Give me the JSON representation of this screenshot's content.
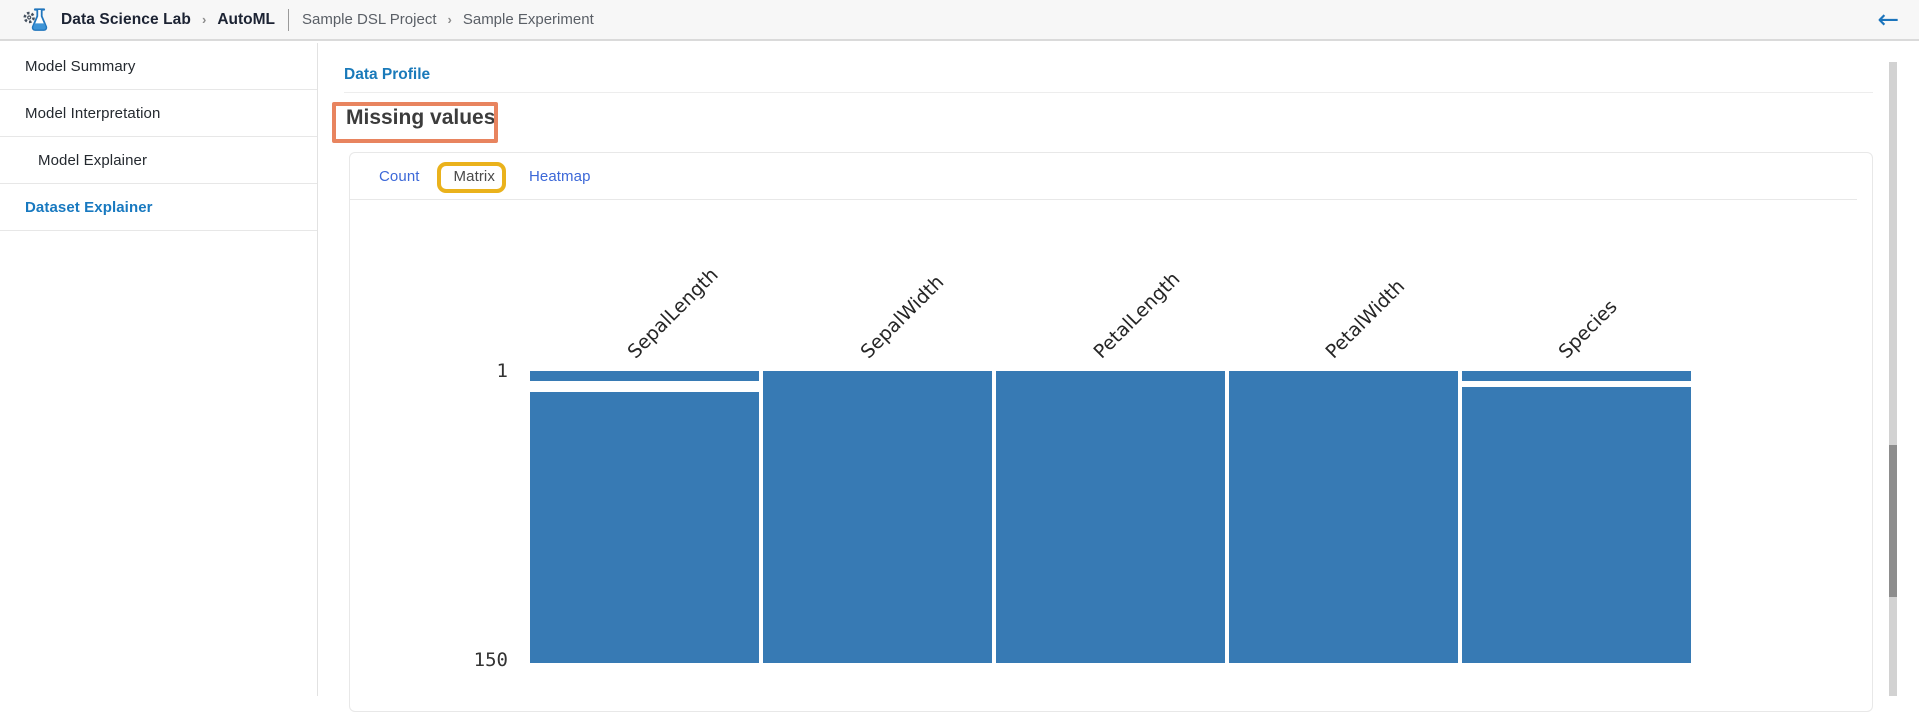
{
  "topbar": {
    "brand": "Data Science Lab",
    "module": "AutoML",
    "project": "Sample DSL Project",
    "experiment": "Sample Experiment",
    "separator": "›",
    "back_icon": "←"
  },
  "sidebar": {
    "items": [
      {
        "label": "Model Summary",
        "indent": false,
        "active": false
      },
      {
        "label": "Model Interpretation",
        "indent": false,
        "active": false
      },
      {
        "label": "Model Explainer",
        "indent": true,
        "active": false
      },
      {
        "label": "Dataset Explainer",
        "indent": false,
        "active": true
      }
    ]
  },
  "main": {
    "breadcrumb_link": "Data Profile",
    "section_title": "Missing values",
    "tabs": [
      {
        "label": "Count",
        "active": false,
        "annotated": false
      },
      {
        "label": "Matrix",
        "active": true,
        "annotated": true
      },
      {
        "label": "Heatmap",
        "active": false,
        "annotated": false
      }
    ]
  },
  "annotations": {
    "title_box_color": "#e8845f",
    "tab_box_color": "#eab21c"
  },
  "colors": {
    "link_blue": "#1a7aba",
    "tab_link_blue": "#3c68d8",
    "back_arrow_blue": "#1b74bc"
  },
  "chart_data": {
    "type": "heatmap",
    "subtype": "missingno-nullity-matrix",
    "title": "",
    "columns": [
      "SepalLength",
      "SepalWidth",
      "PetalLength",
      "PetalWidth",
      "Species"
    ],
    "rows_total": 150,
    "y_ticks": [
      "1",
      "150"
    ],
    "column_label_rotation_deg": 45,
    "bar_color": "#377ab4",
    "missing_row_ranges": {
      "SepalLength": [
        [
          6,
          11
        ]
      ],
      "SepalWidth": [],
      "PetalLength": [],
      "PetalWidth": [],
      "Species": [
        [
          6,
          8
        ]
      ]
    }
  }
}
